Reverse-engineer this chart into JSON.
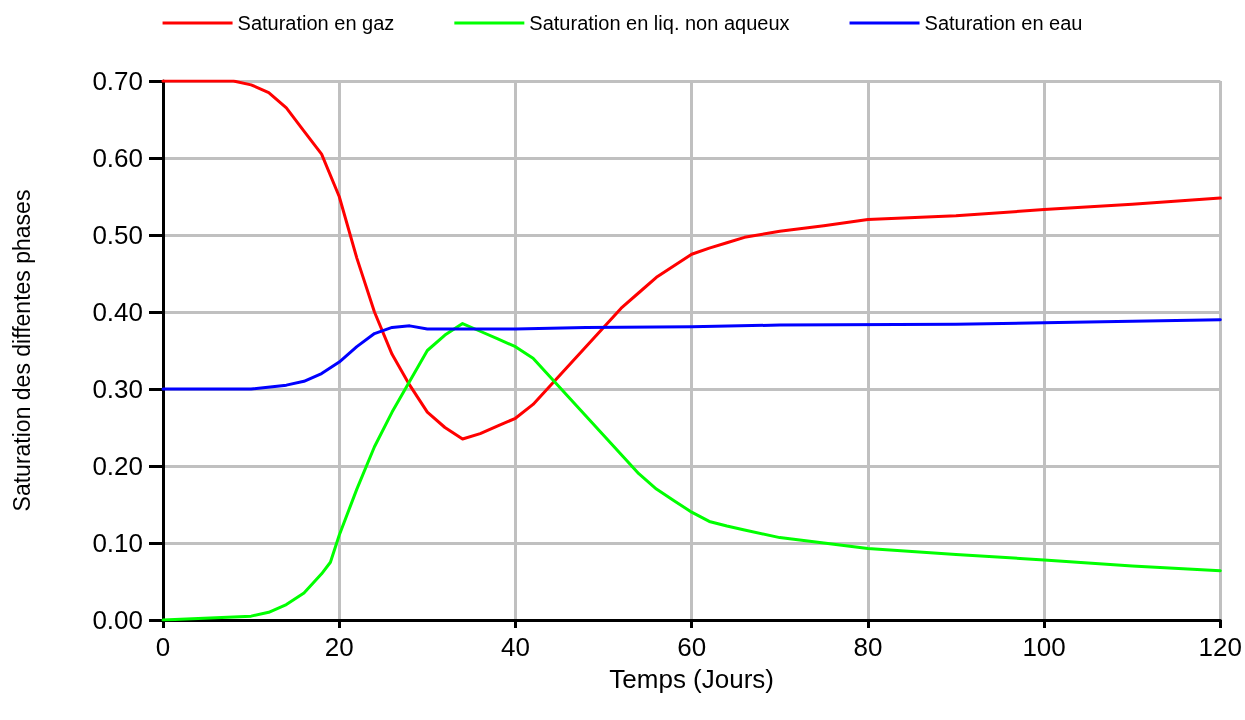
{
  "chart_data": {
    "type": "line",
    "xlabel": "Temps (Jours)",
    "ylabel": "Saturation des diffentes phases",
    "xlim": [
      0,
      120
    ],
    "xticks": [
      0,
      20,
      40,
      60,
      80,
      100,
      120
    ],
    "ylim": [
      0,
      0.7
    ],
    "yticks": [
      {
        "value": 0,
        "label": "0.00"
      },
      {
        "value": 0.1,
        "label": "0.10"
      },
      {
        "value": 0.2,
        "label": "0.20"
      },
      {
        "value": 0.3,
        "label": "0.30"
      },
      {
        "value": 0.4,
        "label": "0.40"
      },
      {
        "value": 0.5,
        "label": "0.50"
      },
      {
        "value": 0.6,
        "label": "0.60"
      },
      {
        "value": 0.7,
        "label": "0.70"
      }
    ],
    "grid": true,
    "legend": "top",
    "marker": "none",
    "line_style": "solid",
    "series": [
      {
        "name": "Saturation en gaz",
        "color": "#ff0000",
        "x": [
          0,
          8,
          10,
          12,
          14,
          16,
          18,
          20,
          22,
          24,
          26,
          28,
          30,
          32,
          34,
          36,
          38,
          40,
          42,
          44,
          46,
          48,
          50,
          52,
          54,
          56,
          58,
          60,
          62,
          64,
          66,
          70,
          75,
          80,
          90,
          100,
          110,
          120
        ],
        "values": [
          0.7,
          0.7,
          0.695,
          0.685,
          0.665,
          0.635,
          0.605,
          0.55,
          0.47,
          0.4,
          0.345,
          0.305,
          0.27,
          0.25,
          0.235,
          0.242,
          0.252,
          0.262,
          0.28,
          0.305,
          0.33,
          0.355,
          0.38,
          0.405,
          0.425,
          0.445,
          0.46,
          0.475,
          0.483,
          0.49,
          0.497,
          0.505,
          0.512,
          0.52,
          0.525,
          0.533,
          0.54,
          0.548
        ]
      },
      {
        "name": "Saturation en liq. non aqueux",
        "color": "#00ff00",
        "x": [
          0,
          10,
          12,
          14,
          16,
          18,
          19,
          20,
          22,
          24,
          26,
          28,
          30,
          32,
          34,
          36,
          38,
          40,
          42,
          44,
          46,
          48,
          50,
          52,
          54,
          56,
          58,
          60,
          62,
          64,
          66,
          70,
          75,
          80,
          90,
          100,
          110,
          120
        ],
        "values": [
          0,
          0.005,
          0.01,
          0.02,
          0.035,
          0.06,
          0.075,
          0.11,
          0.17,
          0.225,
          0.27,
          0.31,
          0.35,
          0.37,
          0.385,
          0.375,
          0.365,
          0.355,
          0.34,
          0.315,
          0.29,
          0.265,
          0.24,
          0.215,
          0.19,
          0.17,
          0.155,
          0.14,
          0.128,
          0.122,
          0.117,
          0.107,
          0.1,
          0.093,
          0.085,
          0.078,
          0.07,
          0.064
        ]
      },
      {
        "name": "Saturation en eau",
        "color": "#0000ff",
        "x": [
          0,
          10,
          14,
          16,
          18,
          20,
          22,
          24,
          26,
          28,
          30,
          40,
          48,
          60,
          70,
          90,
          100,
          120
        ],
        "values": [
          0.3,
          0.3,
          0.305,
          0.31,
          0.32,
          0.335,
          0.355,
          0.372,
          0.38,
          0.382,
          0.378,
          0.378,
          0.38,
          0.381,
          0.383,
          0.384,
          0.386,
          0.39
        ]
      }
    ]
  }
}
